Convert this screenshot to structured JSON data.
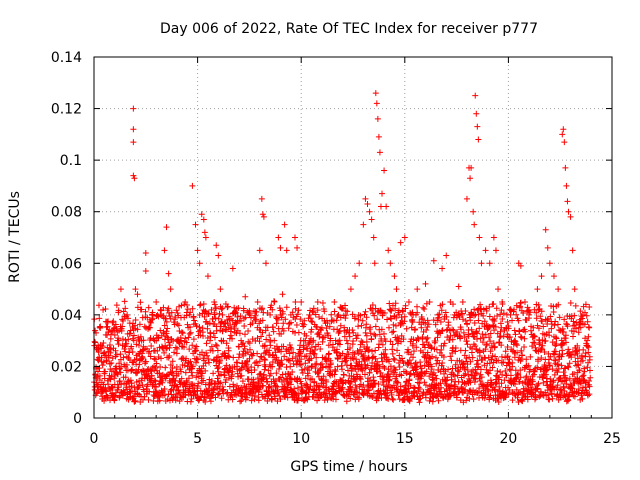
{
  "chart_data": {
    "type": "scatter",
    "title": "Day 006 of 2022, Rate Of TEC Index for receiver p777",
    "xlabel": "GPS time / hours",
    "ylabel": "ROTI / TECUs",
    "xlim": [
      0,
      25
    ],
    "ylim": [
      0,
      0.14
    ],
    "xticks": [
      "0",
      "5",
      "10",
      "15",
      "20",
      "25"
    ],
    "yticks": [
      "0",
      "0.02",
      "0.04",
      "0.06",
      "0.08",
      "0.1",
      "0.12",
      "0.14"
    ],
    "grid": true,
    "marker": "+",
    "color": "#ff0000",
    "series": [
      {
        "points": [
          [
            0.1,
            0.033
          ],
          [
            0.2,
            0.028
          ],
          [
            0.3,
            0.012
          ],
          [
            0.5,
            0.018
          ],
          [
            0.6,
            0.022
          ],
          [
            0.8,
            0.015
          ],
          [
            1.0,
            0.035
          ],
          [
            1.2,
            0.03
          ],
          [
            1.3,
            0.05
          ],
          [
            1.5,
            0.02
          ],
          [
            1.6,
            0.04
          ],
          [
            1.7,
            0.012
          ],
          [
            1.9,
            0.12
          ],
          [
            1.9,
            0.112
          ],
          [
            1.9,
            0.107
          ],
          [
            1.9,
            0.094
          ],
          [
            1.95,
            0.093
          ],
          [
            2.0,
            0.05
          ],
          [
            2.1,
            0.048
          ],
          [
            2.2,
            0.025
          ],
          [
            2.3,
            0.03
          ],
          [
            2.5,
            0.064
          ],
          [
            2.5,
            0.057
          ],
          [
            2.7,
            0.035
          ],
          [
            2.9,
            0.02
          ],
          [
            3.0,
            0.045
          ],
          [
            3.2,
            0.04
          ],
          [
            3.4,
            0.065
          ],
          [
            3.5,
            0.074
          ],
          [
            3.6,
            0.056
          ],
          [
            3.7,
            0.05
          ],
          [
            3.8,
            0.022
          ],
          [
            4.0,
            0.03
          ],
          [
            4.2,
            0.018
          ],
          [
            4.4,
            0.045
          ],
          [
            4.6,
            0.04
          ],
          [
            4.75,
            0.09
          ],
          [
            4.9,
            0.075
          ],
          [
            5.0,
            0.065
          ],
          [
            5.1,
            0.06
          ],
          [
            5.2,
            0.079
          ],
          [
            5.3,
            0.077
          ],
          [
            5.35,
            0.072
          ],
          [
            5.4,
            0.07
          ],
          [
            5.5,
            0.055
          ],
          [
            5.6,
            0.03
          ],
          [
            5.8,
            0.045
          ],
          [
            5.9,
            0.067
          ],
          [
            6.0,
            0.063
          ],
          [
            6.1,
            0.05
          ],
          [
            6.2,
            0.04
          ],
          [
            6.3,
            0.025
          ],
          [
            6.5,
            0.035
          ],
          [
            6.7,
            0.058
          ],
          [
            6.9,
            0.02
          ],
          [
            7.1,
            0.03
          ],
          [
            7.3,
            0.047
          ],
          [
            7.5,
            0.04
          ],
          [
            7.7,
            0.025
          ],
          [
            7.9,
            0.045
          ],
          [
            8.0,
            0.065
          ],
          [
            8.1,
            0.085
          ],
          [
            8.15,
            0.079
          ],
          [
            8.2,
            0.078
          ],
          [
            8.3,
            0.06
          ],
          [
            8.5,
            0.04
          ],
          [
            8.7,
            0.03
          ],
          [
            8.9,
            0.07
          ],
          [
            9.0,
            0.066
          ],
          [
            9.1,
            0.048
          ],
          [
            9.2,
            0.075
          ],
          [
            9.3,
            0.065
          ],
          [
            9.5,
            0.04
          ],
          [
            9.7,
            0.07
          ],
          [
            9.8,
            0.066
          ],
          [
            10.0,
            0.045
          ],
          [
            10.2,
            0.03
          ],
          [
            10.4,
            0.04
          ],
          [
            10.6,
            0.025
          ],
          [
            10.8,
            0.045
          ],
          [
            11.0,
            0.035
          ],
          [
            11.2,
            0.02
          ],
          [
            11.4,
            0.03
          ],
          [
            11.6,
            0.045
          ],
          [
            11.8,
            0.04
          ],
          [
            12.0,
            0.025
          ],
          [
            12.2,
            0.03
          ],
          [
            12.4,
            0.05
          ],
          [
            12.6,
            0.055
          ],
          [
            12.8,
            0.06
          ],
          [
            13.0,
            0.075
          ],
          [
            13.1,
            0.085
          ],
          [
            13.2,
            0.083
          ],
          [
            13.3,
            0.08
          ],
          [
            13.4,
            0.077
          ],
          [
            13.5,
            0.07
          ],
          [
            13.55,
            0.06
          ],
          [
            13.6,
            0.126
          ],
          [
            13.65,
            0.122
          ],
          [
            13.7,
            0.116
          ],
          [
            13.75,
            0.109
          ],
          [
            13.8,
            0.103
          ],
          [
            13.85,
            0.082
          ],
          [
            13.9,
            0.087
          ],
          [
            14.0,
            0.096
          ],
          [
            14.1,
            0.082
          ],
          [
            14.2,
            0.065
          ],
          [
            14.3,
            0.06
          ],
          [
            14.5,
            0.055
          ],
          [
            14.6,
            0.05
          ],
          [
            14.8,
            0.068
          ],
          [
            15.0,
            0.07
          ],
          [
            15.2,
            0.045
          ],
          [
            15.4,
            0.04
          ],
          [
            15.6,
            0.05
          ],
          [
            15.8,
            0.035
          ],
          [
            16.0,
            0.052
          ],
          [
            16.2,
            0.045
          ],
          [
            16.4,
            0.061
          ],
          [
            16.6,
            0.04
          ],
          [
            16.8,
            0.058
          ],
          [
            17.0,
            0.063
          ],
          [
            17.2,
            0.045
          ],
          [
            17.4,
            0.04
          ],
          [
            17.6,
            0.051
          ],
          [
            17.8,
            0.045
          ],
          [
            18.0,
            0.085
          ],
          [
            18.1,
            0.097
          ],
          [
            18.15,
            0.093
          ],
          [
            18.2,
            0.097
          ],
          [
            18.3,
            0.08
          ],
          [
            18.35,
            0.075
          ],
          [
            18.4,
            0.125
          ],
          [
            18.45,
            0.118
          ],
          [
            18.5,
            0.113
          ],
          [
            18.55,
            0.108
          ],
          [
            18.6,
            0.07
          ],
          [
            18.7,
            0.06
          ],
          [
            18.9,
            0.065
          ],
          [
            19.1,
            0.06
          ],
          [
            19.3,
            0.07
          ],
          [
            19.4,
            0.065
          ],
          [
            19.5,
            0.05
          ],
          [
            19.7,
            0.045
          ],
          [
            19.9,
            0.035
          ],
          [
            20.1,
            0.04
          ],
          [
            20.3,
            0.03
          ],
          [
            20.5,
            0.06
          ],
          [
            20.6,
            0.059
          ],
          [
            20.8,
            0.045
          ],
          [
            21.0,
            0.04
          ],
          [
            21.2,
            0.035
          ],
          [
            21.4,
            0.05
          ],
          [
            21.6,
            0.055
          ],
          [
            21.8,
            0.073
          ],
          [
            21.9,
            0.066
          ],
          [
            22.0,
            0.06
          ],
          [
            22.2,
            0.055
          ],
          [
            22.4,
            0.05
          ],
          [
            22.6,
            0.11
          ],
          [
            22.65,
            0.112
          ],
          [
            22.7,
            0.107
          ],
          [
            22.75,
            0.097
          ],
          [
            22.8,
            0.09
          ],
          [
            22.85,
            0.084
          ],
          [
            22.9,
            0.08
          ],
          [
            23.0,
            0.078
          ],
          [
            23.1,
            0.065
          ],
          [
            23.2,
            0.05
          ],
          [
            23.4,
            0.035
          ],
          [
            23.6,
            0.04
          ],
          [
            23.8,
            0.03
          ],
          [
            23.9,
            0.035
          ]
        ]
      }
    ]
  }
}
